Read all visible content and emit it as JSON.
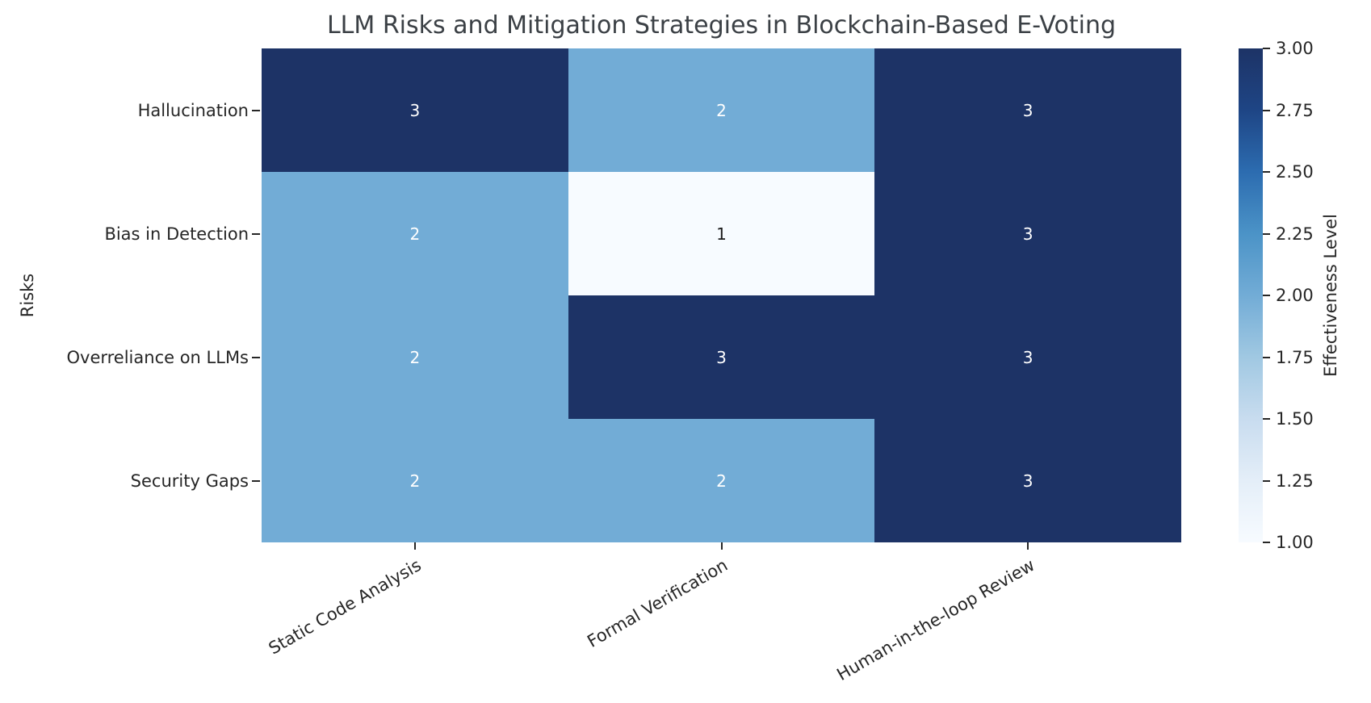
{
  "colors": {
    "background": "#ffffff",
    "title_text": "#3b4045",
    "tick_text": "#262626"
  },
  "chart_data": {
    "type": "heatmap",
    "title": "LLM Risks and Mitigation Strategies in Blockchain-Based E-Voting",
    "xlabel": "",
    "ylabel": "Risks",
    "rows": [
      "Hallucination",
      "Bias in Detection",
      "Overreliance on LLMs",
      "Security Gaps"
    ],
    "columns": [
      "Static Code Analysis",
      "Formal Verification",
      "Human-in-the-loop Review"
    ],
    "values": [
      [
        3,
        2,
        3
      ],
      [
        2,
        1,
        3
      ],
      [
        2,
        3,
        3
      ],
      [
        2,
        2,
        3
      ]
    ],
    "vmin": 1,
    "vmax": 3,
    "colormap": "Blues",
    "value_colors": {
      "1": "#f7fbff",
      "2": "#72acd6",
      "3": "#1d3366"
    },
    "annotation_text_colors": {
      "1": "#1a1a1a",
      "2": "#ffffff",
      "3": "#ffffff"
    },
    "colorbar": {
      "label": "Effectiveness Level",
      "ticks": [
        "3.00",
        "2.75",
        "2.50",
        "2.25",
        "2.00",
        "1.75",
        "1.50",
        "1.25",
        "1.00"
      ],
      "gradient_top_to_bottom": [
        "#1d3366",
        "#1e4585",
        "#2c6cb0",
        "#4b93c7",
        "#72acd6",
        "#a0c8e2",
        "#c8dcef",
        "#e4eef8",
        "#f7fbff"
      ]
    },
    "grid": false,
    "legend_position": "right-colorbar"
  }
}
